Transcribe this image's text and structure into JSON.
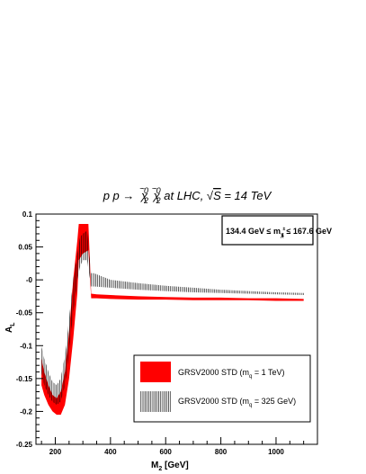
{
  "chart_data": {
    "type": "area",
    "title_parts": {
      "prefix": "p p →",
      "chi": "χ",
      "tilde": "~",
      "sub": "2",
      "sup": "0",
      "suffix": " at LHC, ",
      "sqrt_s": "S",
      "energy": " = 14 TeV"
    },
    "xlabel": {
      "main": "M",
      "sub": "2",
      "unit": " [GeV]"
    },
    "ylabel": {
      "main": "A",
      "sub": "L"
    },
    "xlim": [
      130,
      1150
    ],
    "ylim": [
      -0.25,
      0.1
    ],
    "x_ticks": [
      200,
      400,
      600,
      800,
      1000
    ],
    "x_tick_labels": [
      "200",
      "400",
      "600",
      "800",
      "1000"
    ],
    "y_ticks": [
      0.1,
      0.05,
      0,
      -0.05,
      -0.1,
      -0.15,
      -0.2,
      -0.25
    ],
    "y_tick_labels": [
      "0.1",
      "0.05",
      "-0",
      "-0.05",
      "-0.1",
      "-0.15",
      "-0.2",
      "-0.25"
    ],
    "annotation": {
      "left": "134.4 GeV ≤ m",
      "sub_chi": "χ",
      "sub_index": "1",
      "sup": "±",
      "right": " ≤ 167.6 GeV"
    },
    "series": [
      {
        "name": "GRSV2000 STD (m",
        "name_sub": "q",
        "name_tail": " = 1 TeV)",
        "style": "filled",
        "color": "#ff0000",
        "x": [
          150,
          160,
          175,
          190,
          205,
          220,
          235,
          250,
          265,
          280,
          285,
          300,
          320,
          330,
          350,
          400,
          500,
          600,
          700,
          800,
          900,
          1000,
          1100
        ],
        "upper": [
          -0.12,
          -0.14,
          -0.16,
          -0.175,
          -0.18,
          -0.17,
          -0.14,
          -0.08,
          0.0,
          0.06,
          0.085,
          0.085,
          0.085,
          -0.021,
          -0.022,
          -0.023,
          -0.025,
          -0.026,
          -0.027,
          -0.027,
          -0.028,
          -0.028,
          -0.029
        ],
        "lower": [
          -0.16,
          -0.175,
          -0.19,
          -0.2,
          -0.205,
          -0.205,
          -0.19,
          -0.15,
          -0.09,
          -0.02,
          0.03,
          0.04,
          0.045,
          -0.028,
          -0.028,
          -0.029,
          -0.03,
          -0.03,
          -0.031,
          -0.031,
          -0.031,
          -0.032,
          -0.032
        ]
      },
      {
        "name": "GRSV2000 STD (m",
        "name_sub": "q",
        "name_tail": " = 325 GeV)",
        "style": "hatched",
        "color": "#000000",
        "x": [
          150,
          160,
          175,
          190,
          205,
          220,
          235,
          250,
          265,
          280,
          290,
          300,
          315,
          330,
          340,
          400,
          500,
          600,
          700,
          800,
          900,
          1000,
          1100
        ],
        "upper": [
          -0.1,
          -0.12,
          -0.14,
          -0.155,
          -0.16,
          -0.15,
          -0.115,
          -0.06,
          0.0,
          0.04,
          0.065,
          0.07,
          0.075,
          0.01,
          0.01,
          0.0,
          -0.005,
          -0.009,
          -0.012,
          -0.015,
          -0.017,
          -0.019,
          -0.02
        ],
        "lower": [
          -0.14,
          -0.16,
          -0.175,
          -0.185,
          -0.19,
          -0.185,
          -0.16,
          -0.11,
          -0.05,
          0.0,
          0.02,
          0.03,
          0.03,
          -0.01,
          -0.01,
          -0.012,
          -0.015,
          -0.017,
          -0.019,
          -0.02,
          -0.021,
          -0.022,
          -0.023
        ]
      }
    ],
    "legend_position": "bottom-right"
  }
}
